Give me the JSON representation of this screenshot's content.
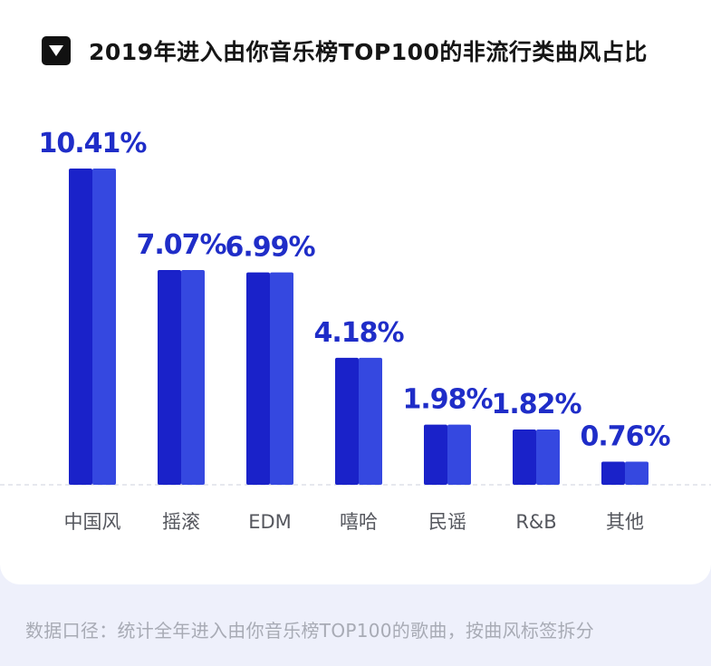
{
  "title": "2019年进入由你音乐榜TOP100的非流行类曲风占比",
  "footnote": "数据口径：统计全年进入由你音乐榜TOP100的歌曲，按曲风标签拆分",
  "colors": {
    "bar_dark": "#1a22c9",
    "bar_light": "#3548e0",
    "value_label": "#1f2dc8",
    "category_label": "#55575e",
    "baseline": "#d7d9e3"
  },
  "chart_data": {
    "type": "bar",
    "categories": [
      "中国风",
      "摇滚",
      "EDM",
      "嘻哈",
      "民谣",
      "R&B",
      "其他"
    ],
    "values": [
      10.41,
      7.07,
      6.99,
      4.18,
      1.98,
      1.82,
      0.76
    ],
    "value_labels": [
      "10.41%",
      "7.07%",
      "6.99%",
      "4.18%",
      "1.98%",
      "1.82%",
      "0.76%"
    ],
    "unit": "%",
    "ylim": [
      0,
      10.41
    ],
    "grid": false,
    "legend": "none"
  }
}
